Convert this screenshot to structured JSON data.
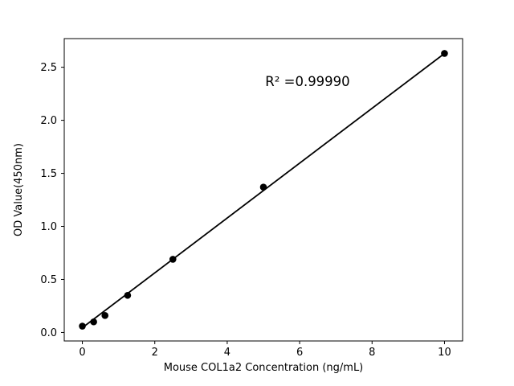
{
  "chart_data": {
    "type": "scatter",
    "title": "",
    "xlabel": "Mouse COL1a2 Concentration (ng/mL)",
    "ylabel": "OD Value(450nm)",
    "annotation": "R² =0.99990",
    "x": [
      0,
      0.3125,
      0.625,
      1.25,
      2.5,
      5,
      10
    ],
    "y": [
      0.06,
      0.1,
      0.16,
      0.35,
      0.69,
      1.37,
      2.63
    ],
    "fit_line": {
      "x": [
        0,
        10
      ],
      "y": [
        0.045,
        2.63
      ]
    },
    "xlim": [
      -0.5,
      10.5
    ],
    "ylim": [
      -0.08,
      2.77
    ],
    "x_ticks": [
      0,
      2,
      4,
      6,
      8,
      10
    ],
    "x_tick_labels": [
      "0",
      "2",
      "4",
      "6",
      "8",
      "10"
    ],
    "y_ticks": [
      0.0,
      0.5,
      1.0,
      1.5,
      2.0,
      2.5
    ],
    "y_tick_labels": [
      "0.0",
      "0.5",
      "1.0",
      "1.5",
      "2.0",
      "2.5"
    ],
    "legend": null,
    "grid": false,
    "marker_color": "#000000",
    "line_color": "#000000",
    "background_color": "#ffffff"
  }
}
